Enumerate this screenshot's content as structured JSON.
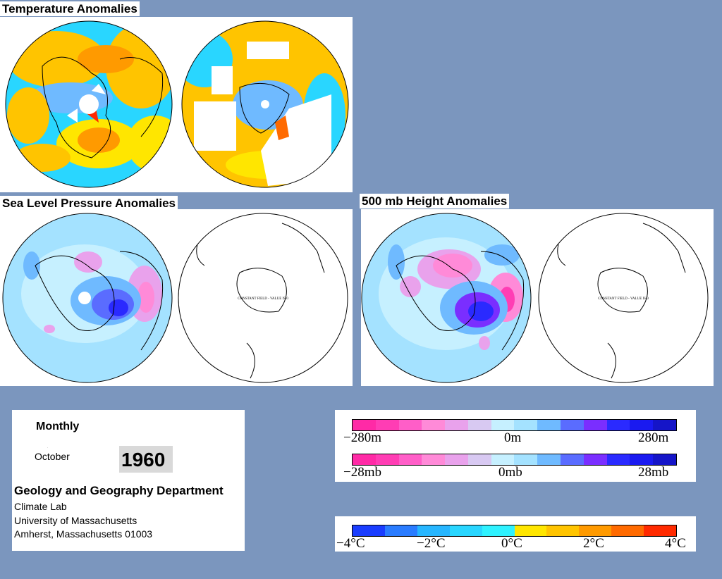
{
  "titles": {
    "temperature": "Temperature Anomalies",
    "slp": "Sea Level Pressure Anomalies",
    "height": "500 mb Height Anomalies"
  },
  "maps": {
    "constant_field_label": "CONSTANT FIELD - VALUE IS 0"
  },
  "info": {
    "period": "Monthly",
    "month": "October",
    "year": "1960",
    "department": "Geology and Geography Department",
    "lab": "Climate Lab",
    "university": "University of Massachusetts",
    "address": "Amherst, Massachusetts 01003"
  },
  "legends": {
    "height": {
      "left": "−280m",
      "mid": "0m",
      "right": "280m"
    },
    "pressure": {
      "left": "−28mb",
      "mid": "0mb",
      "right": "28mb"
    },
    "temperature": {
      "t1": "−4°C",
      "t2": "−2°C",
      "t3": "0°C",
      "t4": "2°C",
      "t5": "4°C"
    }
  },
  "colors": {
    "background": "#7b96be",
    "anomaly_scale": [
      "#ff2aa6",
      "#ff3db4",
      "#ff5ec8",
      "#ff8ad8",
      "#e9a2ec",
      "#d8c9f2",
      "#c6f0ff",
      "#a4e2ff",
      "#6fbaff",
      "#5a6cff",
      "#7a2eff",
      "#2a2aff",
      "#1a1af0",
      "#1515c8"
    ],
    "temperature_scale": [
      "#1a3dff",
      "#2a7cff",
      "#27b6ff",
      "#29d6ff",
      "#2ff2ff",
      "#ffe600",
      "#ffc400",
      "#ff9a00",
      "#ff6a00",
      "#ff2a00"
    ]
  }
}
